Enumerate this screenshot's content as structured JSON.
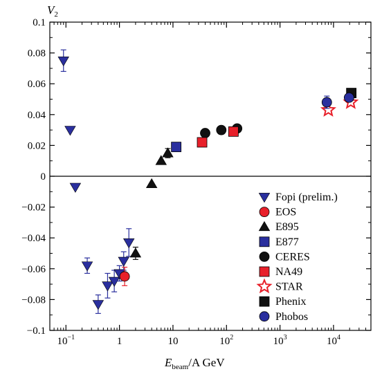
{
  "chart_data": {
    "type": "scatter",
    "title": "",
    "ylabel": "V",
    "ylabel_sub": "2",
    "xlabel_main": "E",
    "xlabel_sub": "beam",
    "xlabel_rest": "/A GeV",
    "x_scale": "log",
    "xlim": [
      0.05,
      50000
    ],
    "ylim": [
      -0.1,
      0.1
    ],
    "y_ticks": [
      -0.1,
      -0.08,
      -0.06,
      -0.04,
      -0.02,
      0,
      0.02,
      0.04,
      0.06,
      0.08,
      0.1
    ],
    "y_tick_labels": [
      "−0.1",
      "−0.08",
      "−0.06",
      "−0.04",
      "−0.02",
      "0",
      "0.02",
      "0.04",
      "0.06",
      "0.08",
      "0.1"
    ],
    "x_major_ticks": [
      0.1,
      1,
      10,
      100,
      1000,
      10000
    ],
    "x_tick_labels": [
      {
        "base": "10",
        "exp": "−1"
      },
      {
        "base": "1",
        "exp": ""
      },
      {
        "base": "10",
        "exp": ""
      },
      {
        "base": "10",
        "exp": "2"
      },
      {
        "base": "10",
        "exp": "3"
      },
      {
        "base": "10",
        "exp": "4"
      }
    ],
    "zero_line": true,
    "grid": false,
    "legend_position": "lower-right",
    "series": [
      {
        "name": "Fopi (prelim.)",
        "marker": "triangle-down",
        "color": "#2a2f9e",
        "points": [
          {
            "x": 0.09,
            "y": 0.075,
            "err": 0.007
          },
          {
            "x": 0.12,
            "y": 0.03
          },
          {
            "x": 0.15,
            "y": -0.007
          },
          {
            "x": 0.25,
            "y": -0.058,
            "err": 0.005
          },
          {
            "x": 0.4,
            "y": -0.083,
            "err": 0.006
          },
          {
            "x": 0.6,
            "y": -0.071,
            "err": 0.008
          },
          {
            "x": 0.8,
            "y": -0.068,
            "err": 0.007
          },
          {
            "x": 1.0,
            "y": -0.063,
            "err": 0.005
          },
          {
            "x": 1.2,
            "y": -0.055,
            "err": 0.006
          },
          {
            "x": 1.5,
            "y": -0.043,
            "err": 0.009
          }
        ]
      },
      {
        "name": "EOS",
        "marker": "circle",
        "color": "#e8202a",
        "points": [
          {
            "x": 1.25,
            "y": -0.065,
            "err": 0.006
          }
        ]
      },
      {
        "name": "E895",
        "marker": "triangle-up",
        "color": "#111111",
        "points": [
          {
            "x": 2.0,
            "y": -0.05,
            "err": 0.004
          },
          {
            "x": 4.0,
            "y": -0.005
          },
          {
            "x": 6.0,
            "y": 0.01
          },
          {
            "x": 8.0,
            "y": 0.015,
            "err": 0.003
          }
        ]
      },
      {
        "name": "E877",
        "marker": "square",
        "color": "#2a2f9e",
        "points": [
          {
            "x": 11.5,
            "y": 0.019
          }
        ]
      },
      {
        "name": "CERES",
        "marker": "circle",
        "color": "#111111",
        "points": [
          {
            "x": 40,
            "y": 0.028
          },
          {
            "x": 80,
            "y": 0.03
          },
          {
            "x": 158,
            "y": 0.031
          }
        ]
      },
      {
        "name": "NA49",
        "marker": "square",
        "color": "#e8202a",
        "points": [
          {
            "x": 35,
            "y": 0.022
          },
          {
            "x": 135,
            "y": 0.029
          }
        ]
      },
      {
        "name": "STAR",
        "marker": "star",
        "color": "#e8202a",
        "points": [
          {
            "x": 8000,
            "y": 0.043
          },
          {
            "x": 21000,
            "y": 0.048
          }
        ]
      },
      {
        "name": "Phenix",
        "marker": "square",
        "color": "#111111",
        "points": [
          {
            "x": 21500,
            "y": 0.054
          }
        ]
      },
      {
        "name": "Phobos",
        "marker": "circle",
        "color": "#2a2f9e",
        "points": [
          {
            "x": 7500,
            "y": 0.048,
            "err": 0.004
          },
          {
            "x": 19500,
            "y": 0.051
          }
        ]
      }
    ]
  }
}
